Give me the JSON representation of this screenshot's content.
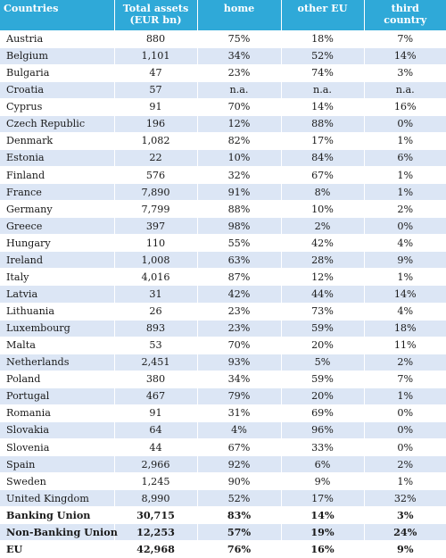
{
  "table": {
    "headers": [
      {
        "line1": "Countries",
        "line2": ""
      },
      {
        "line1": "Total assets",
        "line2": "(EUR bn)"
      },
      {
        "line1": "home",
        "line2": ""
      },
      {
        "line1": "other EU",
        "line2": ""
      },
      {
        "line1": "third",
        "line2": "country"
      }
    ],
    "rows": [
      [
        "Austria",
        "880",
        "75%",
        "18%",
        "7%"
      ],
      [
        "Belgium",
        "1,101",
        "34%",
        "52%",
        "14%"
      ],
      [
        "Bulgaria",
        "47",
        "23%",
        "74%",
        "3%"
      ],
      [
        "Croatia",
        "57",
        "n.a.",
        "n.a.",
        "n.a."
      ],
      [
        "Cyprus",
        "91",
        "70%",
        "14%",
        "16%"
      ],
      [
        "Czech Republic",
        "196",
        "12%",
        "88%",
        "0%"
      ],
      [
        "Denmark",
        "1,082",
        "82%",
        "17%",
        "1%"
      ],
      [
        "Estonia",
        "22",
        "10%",
        "84%",
        "6%"
      ],
      [
        "Finland",
        "576",
        "32%",
        "67%",
        "1%"
      ],
      [
        "France",
        "7,890",
        "91%",
        "8%",
        "1%"
      ],
      [
        "Germany",
        "7,799",
        "88%",
        "10%",
        "2%"
      ],
      [
        "Greece",
        "397",
        "98%",
        "2%",
        "0%"
      ],
      [
        "Hungary",
        "110",
        "55%",
        "42%",
        "4%"
      ],
      [
        "Ireland",
        "1,008",
        "63%",
        "28%",
        "9%"
      ],
      [
        "Italy",
        "4,016",
        "87%",
        "12%",
        "1%"
      ],
      [
        "Latvia",
        "31",
        "42%",
        "44%",
        "14%"
      ],
      [
        "Lithuania",
        "26",
        "23%",
        "73%",
        "4%"
      ],
      [
        "Luxembourg",
        "893",
        "23%",
        "59%",
        "18%"
      ],
      [
        "Malta",
        "53",
        "70%",
        "20%",
        "11%"
      ],
      [
        "Netherlands",
        "2,451",
        "93%",
        "5%",
        "2%"
      ],
      [
        "Poland",
        "380",
        "34%",
        "59%",
        "7%"
      ],
      [
        "Portugal",
        "467",
        "79%",
        "20%",
        "1%"
      ],
      [
        "Romania",
        "91",
        "31%",
        "69%",
        "0%"
      ],
      [
        "Slovakia",
        "64",
        "4%",
        "96%",
        "0%"
      ],
      [
        "Slovenia",
        "44",
        "67%",
        "33%",
        "0%"
      ],
      [
        "Spain",
        "2,966",
        "92%",
        "6%",
        "2%"
      ],
      [
        "Sweden",
        "1,245",
        "90%",
        "9%",
        "1%"
      ],
      [
        "United Kingdom",
        "8,990",
        "52%",
        "17%",
        "32%"
      ]
    ],
    "totals": [
      [
        "Banking Union",
        "30,715",
        "83%",
        "14%",
        "3%"
      ],
      [
        "Non-Banking Union",
        "12,253",
        "57%",
        "19%",
        "24%"
      ],
      [
        "EU",
        "42,968",
        "76%",
        "16%",
        "9%"
      ]
    ]
  },
  "colors": {
    "header_bg": "#2fa9d8",
    "header_text": "#ffffff",
    "row_alt_bg": "#dce6f5",
    "row_bg": "#ffffff"
  }
}
